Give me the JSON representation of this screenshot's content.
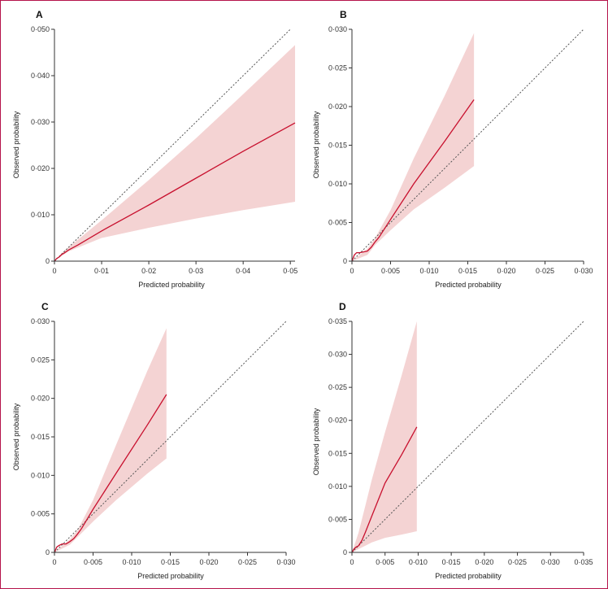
{
  "colors": {
    "border": "#b5134b",
    "line": "#c8102e",
    "band": "#f4d3d3",
    "diagonal": "#555555",
    "axis": "#333333"
  },
  "chart_data": [
    {
      "panel": "A",
      "type": "line",
      "xlabel": "Predicted probability",
      "ylabel": "Observed probability",
      "xlim": [
        0,
        0.051
      ],
      "ylim": [
        0,
        0.05
      ],
      "xticks": [
        0,
        0.01,
        0.02,
        0.03,
        0.04,
        0.05
      ],
      "xtick_labels": [
        "0",
        "0·01",
        "0·02",
        "0·03",
        "0·04",
        "0·05"
      ],
      "yticks": [
        0,
        0.01,
        0.02,
        0.03,
        0.04,
        0.05
      ],
      "ytick_labels": [
        "0",
        "0·010",
        "0·020",
        "0·030",
        "0·040",
        "0·050"
      ],
      "diagonal": true,
      "series": [
        {
          "x": [
            0,
            0.0005,
            0.001,
            0.0015,
            0.002,
            0.003,
            0.005,
            0.01,
            0.02,
            0.03,
            0.04,
            0.051
          ],
          "y": [
            0,
            0.0006,
            0.0009,
            0.0014,
            0.0017,
            0.0024,
            0.0035,
            0.0065,
            0.0121,
            0.0179,
            0.0237,
            0.0298
          ]
        }
      ],
      "band": {
        "x": [
          0,
          0.0015,
          0.003,
          0.01,
          0.02,
          0.03,
          0.04,
          0.051
        ],
        "lower": [
          0,
          0.0011,
          0.0021,
          0.005,
          0.0072,
          0.0092,
          0.011,
          0.0128
        ],
        "upper": [
          0,
          0.0017,
          0.003,
          0.0088,
          0.0175,
          0.0265,
          0.036,
          0.0466
        ]
      }
    },
    {
      "panel": "B",
      "type": "line",
      "xlabel": "Predicted probability",
      "ylabel": "Observed probability",
      "xlim": [
        0,
        0.03
      ],
      "ylim": [
        0,
        0.03
      ],
      "xticks": [
        0,
        0.005,
        0.01,
        0.015,
        0.02,
        0.025,
        0.03
      ],
      "xtick_labels": [
        "0",
        "0·005",
        "0·010",
        "0·015",
        "0·020",
        "0·025",
        "0·030"
      ],
      "yticks": [
        0,
        0.005,
        0.01,
        0.015,
        0.02,
        0.025,
        0.03
      ],
      "ytick_labels": [
        "0",
        "0·005",
        "0·010",
        "0·015",
        "0·020",
        "0·025",
        "0·030"
      ],
      "diagonal": true,
      "series": [
        {
          "x": [
            0,
            0.0003,
            0.0006,
            0.001,
            0.0015,
            0.002,
            0.0025,
            0.003,
            0.0035,
            0.005,
            0.008,
            0.012,
            0.0158
          ],
          "y": [
            0,
            0.0008,
            0.0011,
            0.0011,
            0.0012,
            0.0013,
            0.0018,
            0.0025,
            0.0031,
            0.0054,
            0.01,
            0.0155,
            0.0209
          ]
        }
      ],
      "band": {
        "x": [
          0,
          0.002,
          0.003,
          0.005,
          0.008,
          0.012,
          0.0158
        ],
        "lower": [
          0,
          0.0008,
          0.0021,
          0.004,
          0.0067,
          0.0095,
          0.0123
        ],
        "upper": [
          0,
          0.0016,
          0.003,
          0.0066,
          0.0133,
          0.0214,
          0.0295
        ]
      }
    },
    {
      "panel": "C",
      "type": "line",
      "xlabel": "Predicted probability",
      "ylabel": "Observed probability",
      "xlim": [
        0,
        0.03
      ],
      "ylim": [
        0,
        0.03
      ],
      "xticks": [
        0,
        0.005,
        0.01,
        0.015,
        0.02,
        0.025,
        0.03
      ],
      "xtick_labels": [
        "0",
        "0·005",
        "0·010",
        "0·015",
        "0·020",
        "0·025",
        "0·030"
      ],
      "yticks": [
        0,
        0.005,
        0.01,
        0.015,
        0.02,
        0.025,
        0.03
      ],
      "ytick_labels": [
        "0",
        "0·005",
        "0·010",
        "0·015",
        "0·020",
        "0·025",
        "0·030"
      ],
      "diagonal": true,
      "series": [
        {
          "x": [
            0,
            0.0003,
            0.0006,
            0.001,
            0.0015,
            0.002,
            0.0025,
            0.003,
            0.0035,
            0.005,
            0.008,
            0.012,
            0.0145
          ],
          "y": [
            0,
            0.0007,
            0.0009,
            0.0011,
            0.0011,
            0.0014,
            0.0018,
            0.0024,
            0.0031,
            0.0056,
            0.0103,
            0.0165,
            0.0205
          ]
        }
      ],
      "band": {
        "x": [
          0,
          0.002,
          0.003,
          0.005,
          0.008,
          0.012,
          0.0145
        ],
        "lower": [
          0,
          0.001,
          0.002,
          0.004,
          0.0068,
          0.0102,
          0.0122
        ],
        "upper": [
          0,
          0.0017,
          0.0029,
          0.0068,
          0.014,
          0.0235,
          0.0291
        ]
      }
    },
    {
      "panel": "D",
      "type": "line",
      "xlabel": "Predicted probability",
      "ylabel": "Observed probability",
      "xlim": [
        0,
        0.035
      ],
      "ylim": [
        0,
        0.035
      ],
      "xticks": [
        0,
        0.005,
        0.01,
        0.015,
        0.02,
        0.025,
        0.03,
        0.035
      ],
      "xtick_labels": [
        "0",
        "0·005",
        "0·010",
        "0·015",
        "0·020",
        "0·025",
        "0·030",
        "0·035"
      ],
      "yticks": [
        0,
        0.005,
        0.01,
        0.015,
        0.02,
        0.025,
        0.03,
        0.035
      ],
      "ytick_labels": [
        "0",
        "0·005",
        "0·010",
        "0·015",
        "0·020",
        "0·025",
        "0·030",
        "0·035"
      ],
      "diagonal": true,
      "series": [
        {
          "x": [
            0,
            0.0003,
            0.0006,
            0.001,
            0.0015,
            0.002,
            0.003,
            0.005,
            0.0075,
            0.0098
          ],
          "y": [
            0,
            0.0005,
            0.0008,
            0.001,
            0.0018,
            0.003,
            0.0055,
            0.0105,
            0.0148,
            0.019
          ]
        }
      ],
      "band": {
        "x": [
          0,
          0.001,
          0.002,
          0.003,
          0.005,
          0.0075,
          0.0098
        ],
        "lower": [
          0,
          0.0005,
          0.001,
          0.0015,
          0.0022,
          0.0027,
          0.0032
        ],
        "upper": [
          0,
          0.003,
          0.007,
          0.011,
          0.0182,
          0.0268,
          0.035
        ]
      }
    }
  ]
}
